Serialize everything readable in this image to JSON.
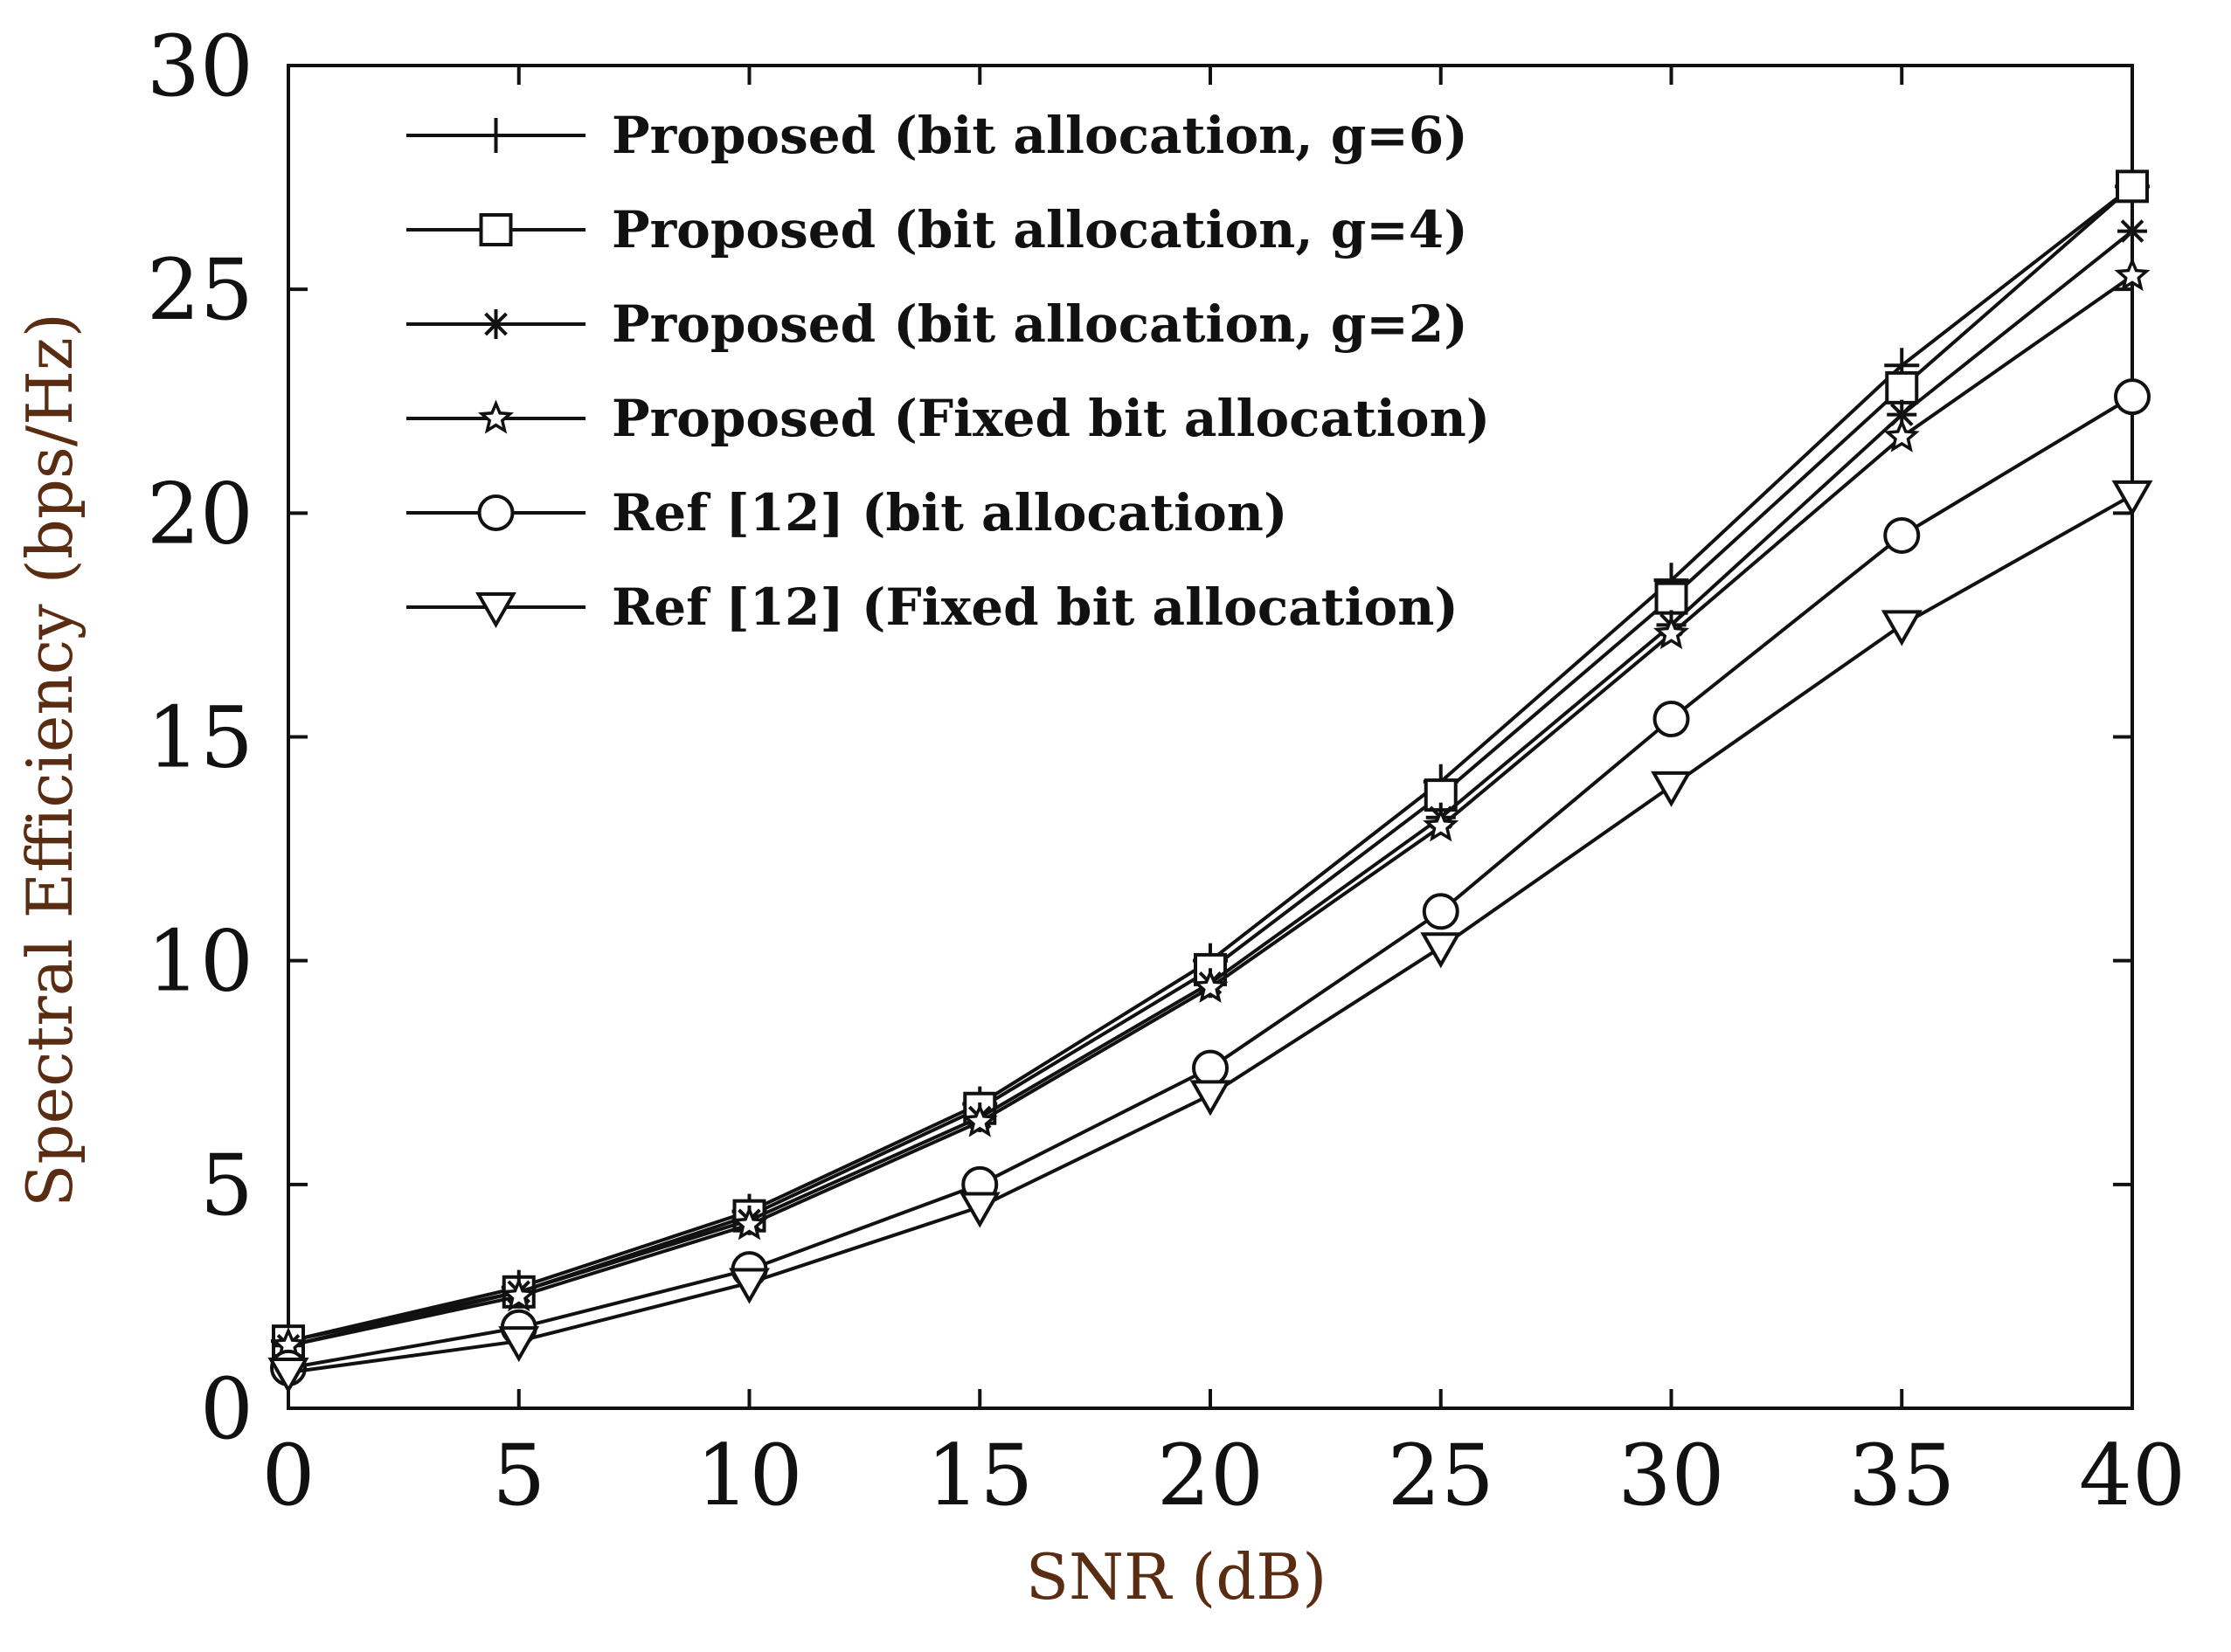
{
  "chart_data": {
    "type": "line",
    "title": "",
    "xlabel": "SNR (dB)",
    "ylabel": "Spectral Efficiency (bps/Hz)",
    "xlim": [
      0,
      40
    ],
    "ylim": [
      0,
      30
    ],
    "xticks": [
      "0",
      "5",
      "10",
      "15",
      "20",
      "25",
      "30",
      "35",
      "40"
    ],
    "yticks": [
      "0",
      "5",
      "10",
      "15",
      "20",
      "25",
      "30"
    ],
    "grid": false,
    "legend_position": "top-left",
    "x": [
      0,
      5,
      10,
      15,
      20,
      25,
      30,
      35,
      40
    ],
    "series": [
      {
        "name": "Proposed (bit allocation, g=6)",
        "marker": "plus",
        "values": [
          1.5,
          2.7,
          4.4,
          6.8,
          10.0,
          14.0,
          18.5,
          23.3,
          27.3
        ]
      },
      {
        "name": "Proposed (bit allocation, g=4)",
        "marker": "square",
        "values": [
          1.5,
          2.6,
          4.3,
          6.7,
          9.8,
          13.7,
          18.1,
          22.8,
          27.3
        ]
      },
      {
        "name": "Proposed (bit allocation, g=2)",
        "marker": "asterisk",
        "values": [
          1.4,
          2.6,
          4.2,
          6.5,
          9.5,
          13.2,
          17.5,
          22.2,
          26.3
        ]
      },
      {
        "name": "Proposed (Fixed bit allocation)",
        "marker": "star",
        "values": [
          1.4,
          2.5,
          4.1,
          6.4,
          9.4,
          13.0,
          17.3,
          21.7,
          25.3
        ]
      },
      {
        "name": "Ref [12] (bit allocation)",
        "marker": "circle",
        "values": [
          0.9,
          1.8,
          3.1,
          5.0,
          7.6,
          11.1,
          15.4,
          19.5,
          22.6
        ]
      },
      {
        "name": "Ref [12] (Fixed bit allocation)",
        "marker": "triangle-down",
        "values": [
          0.8,
          1.5,
          2.8,
          4.5,
          7.0,
          10.3,
          13.9,
          17.5,
          20.4
        ]
      }
    ]
  }
}
